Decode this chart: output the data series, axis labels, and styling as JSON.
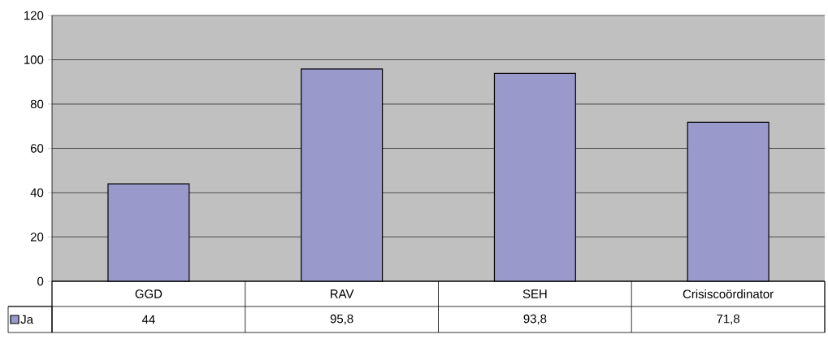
{
  "chart_data": {
    "type": "bar",
    "categories": [
      "GGD",
      "RAV",
      "SEH",
      "Crisiscoördinator"
    ],
    "series": [
      {
        "name": "Ja",
        "color": "#9999cc",
        "values": [
          44,
          95.8,
          93.8,
          71.8
        ],
        "value_labels": [
          "44",
          "95,8",
          "93,8",
          "71,8"
        ]
      }
    ],
    "ylim": [
      0,
      120
    ],
    "yticks": [
      0,
      20,
      40,
      60,
      80,
      100,
      120
    ],
    "grid": "y",
    "legend": "bottom left"
  }
}
